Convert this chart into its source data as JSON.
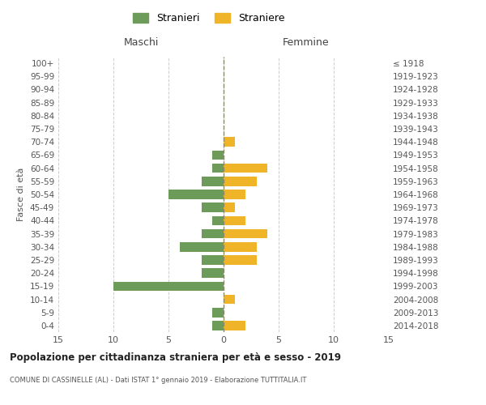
{
  "age_groups": [
    "100+",
    "95-99",
    "90-94",
    "85-89",
    "80-84",
    "75-79",
    "70-74",
    "65-69",
    "60-64",
    "55-59",
    "50-54",
    "45-49",
    "40-44",
    "35-39",
    "30-34",
    "25-29",
    "20-24",
    "15-19",
    "10-14",
    "5-9",
    "0-4"
  ],
  "birth_years": [
    "≤ 1918",
    "1919-1923",
    "1924-1928",
    "1929-1933",
    "1934-1938",
    "1939-1943",
    "1944-1948",
    "1949-1953",
    "1954-1958",
    "1959-1963",
    "1964-1968",
    "1969-1973",
    "1974-1978",
    "1979-1983",
    "1984-1988",
    "1989-1993",
    "1994-1998",
    "1999-2003",
    "2004-2008",
    "2009-2013",
    "2014-2018"
  ],
  "maschi": [
    0,
    0,
    0,
    0,
    0,
    0,
    0,
    1,
    1,
    2,
    5,
    2,
    1,
    2,
    4,
    2,
    2,
    10,
    0,
    1,
    1
  ],
  "femmine": [
    0,
    0,
    0,
    0,
    0,
    0,
    1,
    0,
    4,
    3,
    2,
    1,
    2,
    4,
    3,
    3,
    0,
    0,
    1,
    0,
    2
  ],
  "maschi_color": "#6d9b5a",
  "femmine_color": "#f0b429",
  "center_line_color": "#8b8b6b",
  "grid_color": "#cccccc",
  "background_color": "#ffffff",
  "title": "Popolazione per cittadinanza straniera per età e sesso - 2019",
  "subtitle": "COMUNE DI CASSINELLE (AL) - Dati ISTAT 1° gennaio 2019 - Elaborazione TUTTITALIA.IT",
  "xlabel_left": "Maschi",
  "xlabel_right": "Femmine",
  "ylabel_left": "Fasce di età",
  "legend_stranieri": "Stranieri",
  "legend_straniere": "Straniere",
  "xlim": 15
}
